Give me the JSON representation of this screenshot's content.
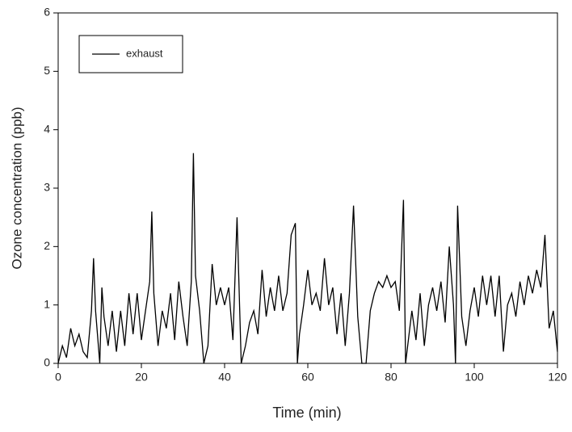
{
  "chart_data": {
    "type": "line",
    "x_label": "Time (min)",
    "y_label": "Ozone concentration (ppb)",
    "x": [
      0,
      1,
      2,
      3,
      4,
      5,
      6,
      7,
      8,
      8.5,
      9,
      10,
      10.5,
      11,
      12,
      13,
      14,
      15,
      16,
      17,
      18,
      19,
      20,
      21,
      22,
      22.5,
      23,
      24,
      25,
      26,
      27,
      28,
      29,
      30,
      31,
      32,
      32.5,
      33,
      34,
      35,
      36,
      37,
      38,
      39,
      40,
      41,
      42,
      43,
      44,
      45,
      46,
      47,
      48,
      49,
      50,
      51,
      52,
      53,
      54,
      55,
      56,
      57,
      57.5,
      58,
      59,
      60,
      61,
      62,
      63,
      64,
      65,
      66,
      67,
      68,
      69,
      70,
      71,
      72,
      73,
      74,
      75,
      76,
      77,
      78,
      79,
      80,
      81,
      82,
      83,
      83.5,
      84,
      85,
      86,
      87,
      88,
      89,
      90,
      91,
      92,
      93,
      94,
      95,
      95.5,
      96,
      97,
      98,
      99,
      100,
      101,
      102,
      103,
      104,
      105,
      106,
      107,
      108,
      109,
      110,
      111,
      112,
      113,
      114,
      115,
      116,
      117,
      118,
      119,
      120
    ],
    "series": [
      {
        "name": "exhaust",
        "color": "#000000",
        "values": [
          0.0,
          0.3,
          0.1,
          0.6,
          0.3,
          0.5,
          0.2,
          0.1,
          0.9,
          1.8,
          0.9,
          0.0,
          1.3,
          0.8,
          0.3,
          0.9,
          0.2,
          0.9,
          0.3,
          1.2,
          0.5,
          1.2,
          0.4,
          0.9,
          1.4,
          2.6,
          1.2,
          0.3,
          0.9,
          0.6,
          1.2,
          0.4,
          1.4,
          0.8,
          0.3,
          1.4,
          3.6,
          1.5,
          0.9,
          0.0,
          0.3,
          1.7,
          1.0,
          1.3,
          1.0,
          1.3,
          0.4,
          2.5,
          0.0,
          0.3,
          0.7,
          0.9,
          0.5,
          1.6,
          0.8,
          1.3,
          0.9,
          1.5,
          0.9,
          1.2,
          2.2,
          2.4,
          0.0,
          0.5,
          1.0,
          1.6,
          1.0,
          1.2,
          0.9,
          1.8,
          1.0,
          1.3,
          0.5,
          1.2,
          0.3,
          1.2,
          2.7,
          0.8,
          0.0,
          0.0,
          0.9,
          1.2,
          1.4,
          1.3,
          1.5,
          1.3,
          1.4,
          0.9,
          2.8,
          0.0,
          0.3,
          0.9,
          0.4,
          1.2,
          0.3,
          1.0,
          1.3,
          0.9,
          1.4,
          0.7,
          2.0,
          1.0,
          0.0,
          2.7,
          0.8,
          0.3,
          0.9,
          1.3,
          0.8,
          1.5,
          1.0,
          1.5,
          0.8,
          1.5,
          0.2,
          1.0,
          1.2,
          0.8,
          1.4,
          1.0,
          1.5,
          1.2,
          1.6,
          1.3,
          2.2,
          0.6,
          0.9,
          0.2
        ]
      }
    ],
    "xlim": [
      0,
      120
    ],
    "xticks": [
      0,
      20,
      40,
      60,
      80,
      100,
      120
    ],
    "ylim": [
      0,
      6
    ],
    "yticks": [
      0,
      1,
      2,
      3,
      4,
      5,
      6
    ],
    "legend": "upper left"
  }
}
